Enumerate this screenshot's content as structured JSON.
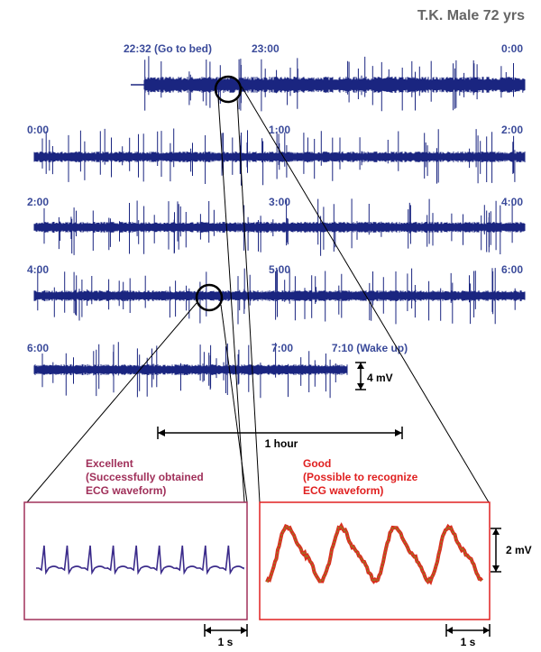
{
  "chart_data": {
    "type": "line",
    "title": "T.K. Male 72 yrs",
    "rows": [
      {
        "start_label": "22:32 (Go to bed)",
        "hour_ticks": [
          {
            "t": 23.0,
            "label": "23:00"
          },
          {
            "t": 24.0,
            "label": "0:00"
          }
        ],
        "t_start": 22.533,
        "t_end": 24.0
      },
      {
        "start_label": "0:00",
        "hour_ticks": [
          {
            "t": 1.0,
            "label": "1:00"
          },
          {
            "t": 2.0,
            "label": "2:00"
          }
        ],
        "t_start": 0.0,
        "t_end": 2.0
      },
      {
        "start_label": "2:00",
        "hour_ticks": [
          {
            "t": 3.0,
            "label": "3:00"
          },
          {
            "t": 4.0,
            "label": "4:00"
          }
        ],
        "t_start": 2.0,
        "t_end": 4.0
      },
      {
        "start_label": "4:00",
        "hour_ticks": [
          {
            "t": 5.0,
            "label": "5:00"
          },
          {
            "t": 6.0,
            "label": "6:00"
          }
        ],
        "t_start": 4.0,
        "t_end": 6.0
      },
      {
        "start_label": "6:00",
        "hour_ticks": [
          {
            "t": 7.0,
            "label": "7:00"
          },
          {
            "t": 7.167,
            "label": "7:10 (Wake up)"
          }
        ],
        "t_start": 6.0,
        "t_end": 7.167
      }
    ],
    "amplitude_scale": "4 mV",
    "time_scale": "1 hour",
    "insets": [
      {
        "title_line1": "Excellent",
        "title_line2": "(Successfully obtained",
        "title_line3": "ECG waveform)",
        "quality": "excellent",
        "scale_time": "1 s",
        "beats": 9
      },
      {
        "title_line1": "Good",
        "title_line2": "(Possible to recognize",
        "title_line3": "ECG waveform)",
        "quality": "good",
        "scale_time": "1 s",
        "scale_amplitude": "2 mV",
        "cycles": 4
      }
    ],
    "colors": {
      "trace": "#1a2580",
      "time_label": "#3a4a9a",
      "excellent_border": "#a0305a",
      "excellent_title": "#a0305a",
      "good_border": "#e02020",
      "good_title": "#e02020",
      "good_trace_outer": "#d83020",
      "good_trace_inner": "#7a9a20",
      "header": "#666666"
    }
  }
}
